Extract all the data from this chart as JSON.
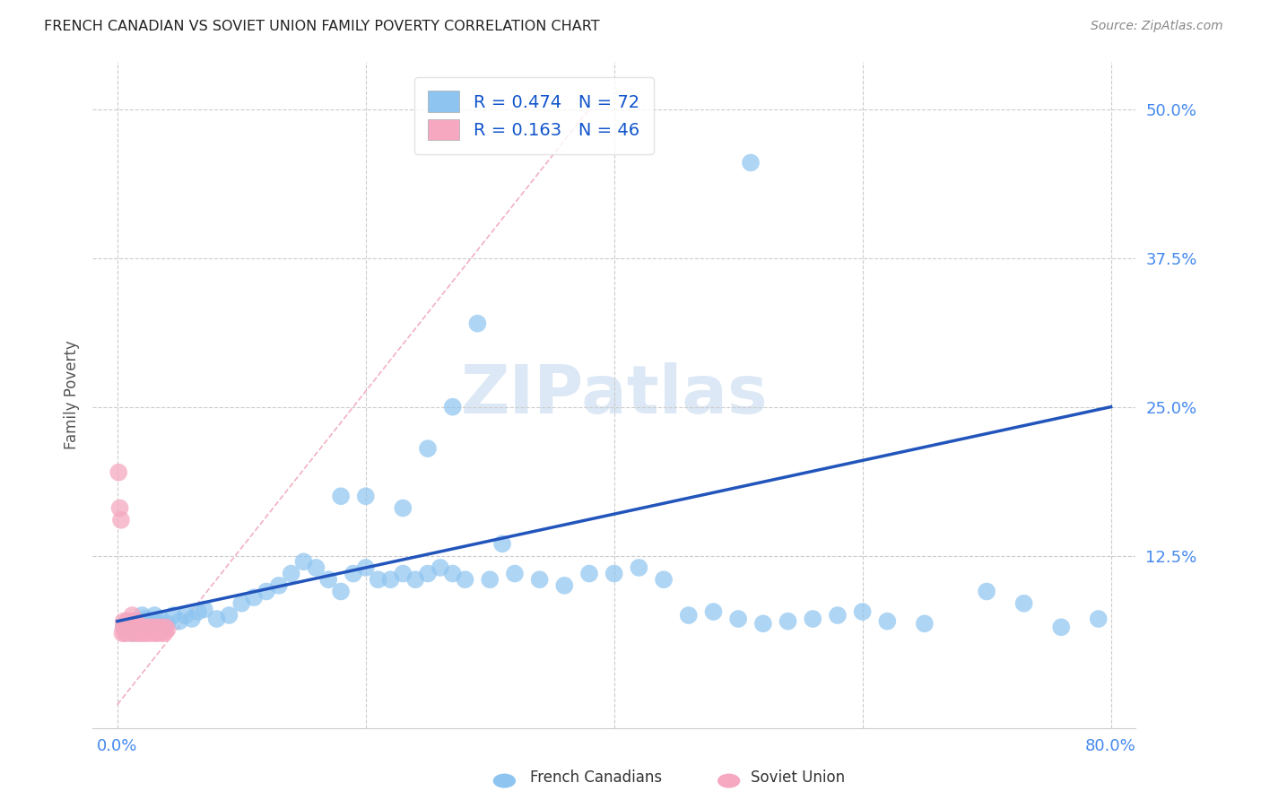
{
  "title": "FRENCH CANADIAN VS SOVIET UNION FAMILY POVERTY CORRELATION CHART",
  "source": "Source: ZipAtlas.com",
  "ylabel": "Family Poverty",
  "ytick_labels": [
    "50.0%",
    "37.5%",
    "25.0%",
    "12.5%"
  ],
  "ytick_values": [
    0.5,
    0.375,
    0.25,
    0.125
  ],
  "xtick_labels": [
    "0.0%",
    "80.0%"
  ],
  "xtick_values": [
    0.0,
    0.8
  ],
  "watermark": "ZIPatlas",
  "legend_blue_r": "R = 0.474",
  "legend_blue_n": "N = 72",
  "legend_pink_r": "R = 0.163",
  "legend_pink_n": "N = 46",
  "blue_color": "#8DC4F0",
  "pink_color": "#F5A8C0",
  "line_blue_color": "#2255BB",
  "line_pink_color": "#E87090",
  "grid_color": "#CCCCCC",
  "background_color": "#FFFFFF",
  "blue_line_x0": 0.0,
  "blue_line_y0": 0.07,
  "blue_line_x1": 0.8,
  "blue_line_y1": 0.25,
  "pink_line_x0": 0.0,
  "pink_line_y0": 0.0,
  "pink_line_x1": 0.38,
  "pink_line_y1": 0.5,
  "blue_scatter_x": [
    0.005,
    0.008,
    0.01,
    0.012,
    0.015,
    0.018,
    0.02,
    0.022,
    0.025,
    0.028,
    0.03,
    0.032,
    0.035,
    0.038,
    0.04,
    0.045,
    0.05,
    0.055,
    0.06,
    0.065,
    0.07,
    0.08,
    0.09,
    0.1,
    0.11,
    0.12,
    0.13,
    0.14,
    0.15,
    0.16,
    0.17,
    0.18,
    0.19,
    0.2,
    0.21,
    0.22,
    0.23,
    0.24,
    0.25,
    0.26,
    0.27,
    0.28,
    0.3,
    0.32,
    0.34,
    0.36,
    0.38,
    0.4,
    0.42,
    0.44,
    0.46,
    0.48,
    0.5,
    0.52,
    0.54,
    0.56,
    0.58,
    0.6,
    0.62,
    0.65,
    0.7,
    0.73,
    0.76,
    0.79,
    0.18,
    0.2,
    0.23,
    0.25,
    0.27,
    0.29,
    0.31,
    0.51
  ],
  "blue_scatter_y": [
    0.065,
    0.07,
    0.068,
    0.06,
    0.065,
    0.068,
    0.075,
    0.072,
    0.065,
    0.07,
    0.075,
    0.068,
    0.072,
    0.065,
    0.068,
    0.075,
    0.07,
    0.075,
    0.072,
    0.078,
    0.08,
    0.072,
    0.075,
    0.085,
    0.09,
    0.095,
    0.1,
    0.11,
    0.12,
    0.115,
    0.105,
    0.095,
    0.11,
    0.115,
    0.105,
    0.105,
    0.11,
    0.105,
    0.11,
    0.115,
    0.11,
    0.105,
    0.105,
    0.11,
    0.105,
    0.1,
    0.11,
    0.11,
    0.115,
    0.105,
    0.075,
    0.078,
    0.072,
    0.068,
    0.07,
    0.072,
    0.075,
    0.078,
    0.07,
    0.068,
    0.095,
    0.085,
    0.065,
    0.072,
    0.175,
    0.175,
    0.165,
    0.215,
    0.25,
    0.32,
    0.135,
    0.455
  ],
  "pink_scatter_x": [
    0.001,
    0.002,
    0.003,
    0.004,
    0.005,
    0.005,
    0.006,
    0.006,
    0.007,
    0.008,
    0.008,
    0.009,
    0.01,
    0.01,
    0.011,
    0.011,
    0.012,
    0.013,
    0.014,
    0.015,
    0.015,
    0.016,
    0.017,
    0.018,
    0.019,
    0.02,
    0.021,
    0.022,
    0.023,
    0.024,
    0.025,
    0.026,
    0.027,
    0.028,
    0.029,
    0.03,
    0.031,
    0.032,
    0.033,
    0.034,
    0.035,
    0.036,
    0.037,
    0.038,
    0.039,
    0.04
  ],
  "pink_scatter_y": [
    0.195,
    0.165,
    0.155,
    0.06,
    0.065,
    0.07,
    0.06,
    0.065,
    0.06,
    0.07,
    0.065,
    0.068,
    0.07,
    0.065,
    0.07,
    0.06,
    0.075,
    0.065,
    0.06,
    0.065,
    0.07,
    0.06,
    0.065,
    0.06,
    0.063,
    0.06,
    0.065,
    0.06,
    0.063,
    0.06,
    0.065,
    0.06,
    0.063,
    0.065,
    0.06,
    0.063,
    0.06,
    0.065,
    0.06,
    0.063,
    0.065,
    0.06,
    0.063,
    0.06,
    0.065,
    0.063
  ],
  "xlim": [
    -0.02,
    0.82
  ],
  "ylim": [
    -0.02,
    0.54
  ]
}
